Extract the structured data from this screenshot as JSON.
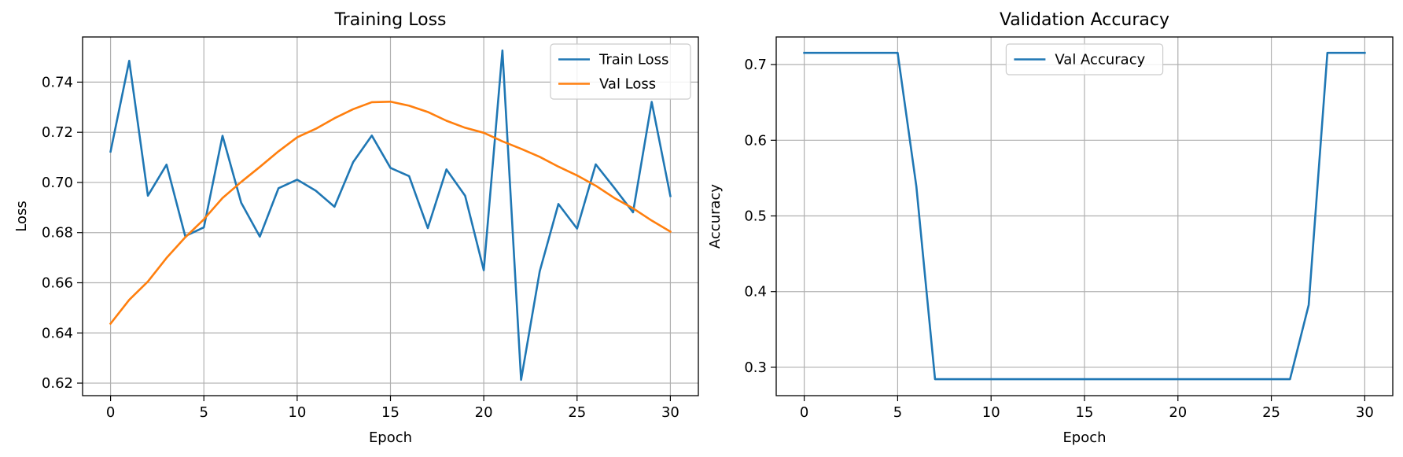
{
  "chart_data": [
    {
      "type": "line",
      "title": "Training Loss",
      "xlabel": "Epoch",
      "ylabel": "Loss",
      "xlim": [
        -1.5,
        31.5
      ],
      "ylim": [
        0.615,
        0.758
      ],
      "xticks": [
        0,
        5,
        10,
        15,
        20,
        25,
        30
      ],
      "xtick_labels": [
        "0",
        "5",
        "10",
        "15",
        "20",
        "25",
        "30"
      ],
      "yticks": [
        0.62,
        0.64,
        0.66,
        0.68,
        0.7,
        0.72,
        0.74
      ],
      "ytick_labels": [
        "0.62",
        "0.64",
        "0.66",
        "0.68",
        "0.70",
        "0.72",
        "0.74"
      ],
      "grid": true,
      "legend_position": "top-right",
      "x": [
        0,
        1,
        2,
        3,
        4,
        5,
        6,
        7,
        8,
        9,
        10,
        11,
        12,
        13,
        14,
        15,
        16,
        17,
        18,
        19,
        20,
        21,
        22,
        23,
        24,
        25,
        26,
        27,
        28,
        29,
        30
      ],
      "series": [
        {
          "name": "Train Loss",
          "color": "#1f77b4",
          "values": [
            0.7123,
            0.7485,
            0.6947,
            0.7071,
            0.6786,
            0.6821,
            0.7186,
            0.6919,
            0.6784,
            0.6977,
            0.7011,
            0.6967,
            0.6903,
            0.7081,
            0.7187,
            0.7058,
            0.7025,
            0.6818,
            0.7052,
            0.6947,
            0.665,
            0.7526,
            0.6213,
            0.6646,
            0.6914,
            0.6816,
            0.7072,
            0.6978,
            0.6881,
            0.7321,
            0.6946
          ]
        },
        {
          "name": "Val Loss",
          "color": "#ff7f0e",
          "values": [
            0.6437,
            0.6532,
            0.6605,
            0.6699,
            0.6781,
            0.6853,
            0.6938,
            0.7002,
            0.7062,
            0.7124,
            0.718,
            0.7214,
            0.7256,
            0.7292,
            0.732,
            0.7322,
            0.7306,
            0.7281,
            0.7246,
            0.7218,
            0.7198,
            0.7164,
            0.7134,
            0.7102,
            0.7063,
            0.7028,
            0.6987,
            0.6938,
            0.6897,
            0.6848,
            0.6804
          ]
        }
      ]
    },
    {
      "type": "line",
      "title": "Validation Accuracy",
      "xlabel": "Epoch",
      "ylabel": "Accuracy",
      "xlim": [
        -1.5,
        31.5
      ],
      "ylim": [
        0.2625,
        0.7365
      ],
      "xticks": [
        0,
        5,
        10,
        15,
        20,
        25,
        30
      ],
      "xtick_labels": [
        "0",
        "5",
        "10",
        "15",
        "20",
        "25",
        "30"
      ],
      "yticks": [
        0.3,
        0.4,
        0.5,
        0.6,
        0.7
      ],
      "ytick_labels": [
        "0.3",
        "0.4",
        "0.5",
        "0.6",
        "0.7"
      ],
      "grid": true,
      "legend_position": "top-center",
      "x": [
        0,
        1,
        2,
        3,
        4,
        5,
        6,
        7,
        8,
        9,
        10,
        11,
        12,
        13,
        14,
        15,
        16,
        17,
        18,
        19,
        20,
        21,
        22,
        23,
        24,
        25,
        26,
        27,
        28,
        29,
        30
      ],
      "series": [
        {
          "name": "Val Accuracy",
          "color": "#1f77b4",
          "values": [
            0.7155,
            0.7155,
            0.7155,
            0.7155,
            0.7155,
            0.7155,
            0.5392,
            0.2843,
            0.2843,
            0.2843,
            0.2843,
            0.2843,
            0.2843,
            0.2843,
            0.2843,
            0.2843,
            0.2843,
            0.2843,
            0.2843,
            0.2843,
            0.2843,
            0.2843,
            0.2843,
            0.2843,
            0.2843,
            0.2843,
            0.2843,
            0.3824,
            0.7155,
            0.7155,
            0.7155
          ]
        }
      ]
    }
  ]
}
